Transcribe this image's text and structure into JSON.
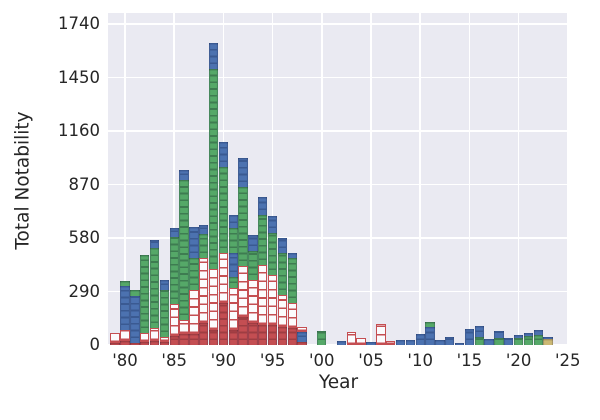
{
  "figure": {
    "xlabel": "Year",
    "ylabel": "Total Notability"
  },
  "axes": {
    "ytick_values": [
      0,
      290,
      580,
      870,
      1160,
      1450,
      1740
    ],
    "ytick_labels": [
      "0",
      "290",
      "580",
      "870",
      "1160",
      "1450",
      "1740"
    ],
    "xtick_years": [
      1980,
      1985,
      1990,
      1995,
      2000,
      2005,
      2010,
      2015,
      2020,
      2025
    ],
    "xtick_labels": [
      "'80",
      "'85",
      "'90",
      "'95",
      "'00",
      "'05",
      "'10",
      "'15",
      "'20",
      "'25"
    ],
    "grid": "on",
    "y_top_value": 1800
  },
  "colors": {
    "plot_background": "#EAEAF2",
    "grid": "#FFFFFF",
    "text": "#262626",
    "blue": "#4C72B0",
    "green": "#55A868",
    "red": "#C44E52",
    "tan": "#CCB974",
    "hollow_fill": "#FBFBFD"
  },
  "chart_data": {
    "type": "bar",
    "stacked": true,
    "title": "",
    "xlabel": "Year",
    "ylabel": "Total Notability",
    "xlim": [
      1978.3,
      2025.2
    ],
    "ylim": [
      0,
      1800
    ],
    "legend": "none",
    "segment_key": {
      "b": "blue",
      "g": "green",
      "r": "solid_red",
      "h": "hollow_red_outline",
      "t": "tan"
    },
    "bars": [
      {
        "year": 1979,
        "segments": [
          [
            "r",
            12
          ],
          [
            "h",
            55
          ]
        ]
      },
      {
        "year": 1980,
        "segments": [
          [
            "r",
            20
          ],
          [
            "h",
            60
          ],
          [
            "b",
            240
          ],
          [
            "g",
            25
          ]
        ]
      },
      {
        "year": 1981,
        "segments": [
          [
            "r",
            10
          ],
          [
            "b",
            255
          ],
          [
            "g",
            35
          ]
        ]
      },
      {
        "year": 1982,
        "segments": [
          [
            "r",
            15
          ],
          [
            "h",
            50
          ],
          [
            "g",
            425
          ]
        ]
      },
      {
        "year": 1983,
        "segments": [
          [
            "r",
            20
          ],
          [
            "h",
            70
          ],
          [
            "g",
            434
          ],
          [
            "b",
            46
          ]
        ]
      },
      {
        "year": 1984,
        "segments": [
          [
            "r",
            15
          ],
          [
            "h",
            30
          ],
          [
            "g",
            255
          ],
          [
            "b",
            50
          ]
        ]
      },
      {
        "year": 1985,
        "segments": [
          [
            "r",
            50
          ],
          [
            "h",
            170
          ],
          [
            "g",
            365
          ],
          [
            "b",
            50
          ]
        ]
      },
      {
        "year": 1986,
        "segments": [
          [
            "r",
            60
          ],
          [
            "h",
            75
          ],
          [
            "g",
            760
          ],
          [
            "b",
            54
          ]
        ]
      },
      {
        "year": 1987,
        "segments": [
          [
            "r",
            60
          ],
          [
            "h",
            240
          ],
          [
            "g",
            170
          ],
          [
            "b",
            170
          ]
        ]
      },
      {
        "year": 1988,
        "segments": [
          [
            "r",
            120
          ],
          [
            "h",
            350
          ],
          [
            "g",
            130
          ],
          [
            "b",
            50
          ]
        ]
      },
      {
        "year": 1989,
        "segments": [
          [
            "r",
            80
          ],
          [
            "h",
            330
          ],
          [
            "g",
            1086
          ],
          [
            "b",
            141
          ]
        ]
      },
      {
        "year": 1990,
        "segments": [
          [
            "r",
            230
          ],
          [
            "h",
            270
          ],
          [
            "g",
            465
          ],
          [
            "b",
            135
          ]
        ]
      },
      {
        "year": 1991,
        "segments": [
          [
            "r",
            80
          ],
          [
            "h",
            230
          ],
          [
            "g",
            60
          ],
          [
            "b",
            130
          ],
          [
            "g",
            135
          ],
          [
            "b",
            70
          ]
        ]
      },
      {
        "year": 1992,
        "segments": [
          [
            "r",
            150
          ],
          [
            "h",
            280
          ],
          [
            "g",
            425
          ],
          [
            "b",
            158
          ]
        ]
      },
      {
        "year": 1993,
        "segments": [
          [
            "r",
            120
          ],
          [
            "h",
            230
          ],
          [
            "g",
            160
          ],
          [
            "b",
            86
          ]
        ]
      },
      {
        "year": 1994,
        "segments": [
          [
            "r",
            110
          ],
          [
            "h",
            325
          ],
          [
            "g",
            270
          ],
          [
            "b",
            100
          ]
        ]
      },
      {
        "year": 1995,
        "segments": [
          [
            "r",
            110
          ],
          [
            "h",
            270
          ],
          [
            "g",
            230
          ],
          [
            "b",
            90
          ]
        ]
      },
      {
        "year": 1996,
        "segments": [
          [
            "r",
            100
          ],
          [
            "h",
            170
          ],
          [
            "g",
            230
          ],
          [
            "b",
            80
          ]
        ]
      },
      {
        "year": 1997,
        "segments": [
          [
            "r",
            90
          ],
          [
            "h",
            140
          ],
          [
            "g",
            240
          ],
          [
            "b",
            30
          ]
        ]
      },
      {
        "year": 1998,
        "segments": [
          [
            "r",
            15
          ],
          [
            "b",
            55
          ],
          [
            "h",
            30
          ]
        ]
      },
      {
        "year": 2000,
        "segments": [
          [
            "g",
            75
          ]
        ]
      },
      {
        "year": 2002,
        "segments": [
          [
            "b",
            20
          ]
        ]
      },
      {
        "year": 2003,
        "segments": [
          [
            "h",
            70
          ]
        ]
      },
      {
        "year": 2004,
        "segments": [
          [
            "h",
            40
          ]
        ]
      },
      {
        "year": 2005,
        "segments": [
          [
            "b",
            18
          ]
        ]
      },
      {
        "year": 2006,
        "segments": [
          [
            "h",
            115
          ]
        ]
      },
      {
        "year": 2007,
        "segments": [
          [
            "h",
            22
          ]
        ]
      },
      {
        "year": 2008,
        "segments": [
          [
            "b",
            25
          ]
        ]
      },
      {
        "year": 2009,
        "segments": [
          [
            "b",
            25
          ]
        ]
      },
      {
        "year": 2010,
        "segments": [
          [
            "b",
            60
          ]
        ]
      },
      {
        "year": 2011,
        "segments": [
          [
            "b",
            95
          ],
          [
            "g",
            30
          ]
        ]
      },
      {
        "year": 2012,
        "segments": [
          [
            "b",
            28
          ]
        ]
      },
      {
        "year": 2013,
        "segments": [
          [
            "b",
            45
          ]
        ]
      },
      {
        "year": 2014,
        "segments": [
          [
            "b",
            12
          ]
        ]
      },
      {
        "year": 2015,
        "segments": [
          [
            "b",
            85
          ]
        ]
      },
      {
        "year": 2016,
        "segments": [
          [
            "g",
            45
          ],
          [
            "b",
            60
          ]
        ]
      },
      {
        "year": 2017,
        "segments": [
          [
            "b",
            35
          ]
        ]
      },
      {
        "year": 2018,
        "segments": [
          [
            "g",
            40
          ],
          [
            "b",
            36
          ]
        ]
      },
      {
        "year": 2019,
        "segments": [
          [
            "b",
            40
          ]
        ]
      },
      {
        "year": 2020,
        "segments": [
          [
            "g",
            40
          ],
          [
            "b",
            15
          ]
        ]
      },
      {
        "year": 2021,
        "segments": [
          [
            "g",
            50
          ],
          [
            "b",
            15
          ]
        ]
      },
      {
        "year": 2022,
        "segments": [
          [
            "g",
            55
          ],
          [
            "b",
            28
          ]
        ]
      },
      {
        "year": 2023,
        "segments": [
          [
            "t",
            35
          ],
          [
            "b",
            10
          ]
        ]
      }
    ]
  }
}
